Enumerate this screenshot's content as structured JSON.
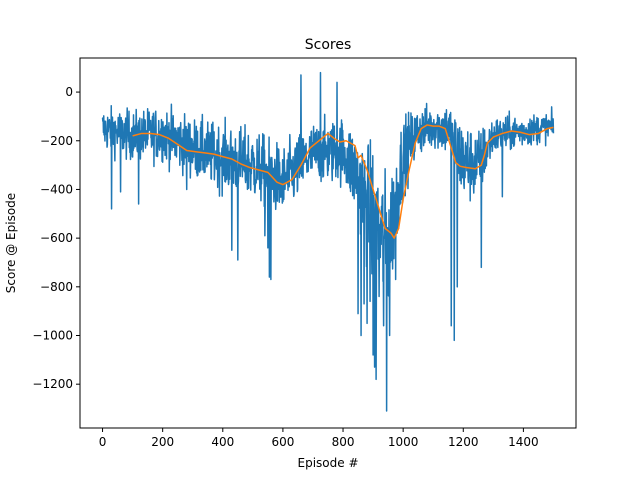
{
  "chart_data": {
    "type": "line",
    "title": "Scores",
    "xlabel": "Episode #",
    "ylabel": "Score @ Episode",
    "xlim": [
      -75,
      1575
    ],
    "ylim": [
      -1380,
      140
    ],
    "xticks": [
      0,
      200,
      400,
      600,
      800,
      1000,
      1200,
      1400
    ],
    "yticks": [
      0,
      -200,
      -400,
      -600,
      -800,
      -1000,
      -1200
    ],
    "grid": false,
    "legend": "none",
    "series": [
      {
        "color": "#1f77b4",
        "kind": "raw scores (noisy, ~1500 episodes)",
        "anchors": [
          [
            0,
            -150,
            80
          ],
          [
            100,
            -180,
            90
          ],
          [
            200,
            -170,
            100
          ],
          [
            300,
            -230,
            110
          ],
          [
            400,
            -270,
            120
          ],
          [
            500,
            -300,
            130
          ],
          [
            600,
            -370,
            130
          ],
          [
            700,
            -250,
            110
          ],
          [
            800,
            -240,
            120
          ],
          [
            850,
            -350,
            170
          ],
          [
            900,
            -520,
            250
          ],
          [
            950,
            -640,
            250
          ],
          [
            1000,
            -260,
            140
          ],
          [
            1050,
            -160,
            90
          ],
          [
            1100,
            -140,
            80
          ],
          [
            1150,
            -150,
            100
          ],
          [
            1200,
            -290,
            150
          ],
          [
            1250,
            -300,
            130
          ],
          [
            1300,
            -180,
            70
          ],
          [
            1400,
            -160,
            60
          ],
          [
            1500,
            -140,
            50
          ]
        ],
        "extremes": [
          [
            30,
            -480
          ],
          [
            60,
            -410
          ],
          [
            105,
            -210
          ],
          [
            120,
            -460
          ],
          [
            280,
            -400
          ],
          [
            430,
            -650
          ],
          [
            450,
            -690
          ],
          [
            540,
            -590
          ],
          [
            550,
            -640
          ],
          [
            555,
            -760
          ],
          [
            560,
            -770
          ],
          [
            600,
            -450
          ],
          [
            615,
            -380
          ],
          [
            660,
            70
          ],
          [
            725,
            80
          ],
          [
            780,
            40
          ],
          [
            850,
            -910
          ],
          [
            860,
            -1000
          ],
          [
            870,
            -870
          ],
          [
            880,
            -950
          ],
          [
            890,
            -860
          ],
          [
            900,
            -1080
          ],
          [
            905,
            -1130
          ],
          [
            910,
            -1180
          ],
          [
            920,
            -840
          ],
          [
            935,
            -960
          ],
          [
            945,
            -1310
          ],
          [
            955,
            -1000
          ],
          [
            975,
            -770
          ],
          [
            1010,
            -380
          ],
          [
            1160,
            -960
          ],
          [
            1170,
            -1020
          ],
          [
            1180,
            -800
          ],
          [
            1260,
            -720
          ],
          [
            1330,
            -430
          ]
        ]
      },
      {
        "color": "#ff7f0e",
        "kind": "rolling average",
        "x": [
          100,
          130,
          160,
          190,
          220,
          250,
          280,
          310,
          340,
          370,
          400,
          430,
          460,
          490,
          520,
          550,
          580,
          600,
          630,
          660,
          690,
          720,
          750,
          770,
          790,
          810,
          840,
          850,
          860,
          880,
          900,
          920,
          940,
          960,
          970,
          985,
          1000,
          1020,
          1040,
          1060,
          1080,
          1100,
          1120,
          1140,
          1160,
          1175,
          1190,
          1210,
          1240,
          1260,
          1270,
          1280,
          1300,
          1330,
          1360,
          1390,
          1420,
          1450,
          1480,
          1500
        ],
        "values": [
          -180,
          -170,
          -170,
          -175,
          -190,
          -215,
          -240,
          -245,
          -250,
          -255,
          -265,
          -275,
          -295,
          -310,
          -320,
          -330,
          -370,
          -380,
          -360,
          -300,
          -230,
          -200,
          -170,
          -190,
          -205,
          -200,
          -220,
          -270,
          -260,
          -320,
          -400,
          -480,
          -560,
          -580,
          -600,
          -560,
          -440,
          -320,
          -210,
          -150,
          -135,
          -140,
          -140,
          -150,
          -230,
          -290,
          -305,
          -310,
          -315,
          -300,
          -260,
          -210,
          -185,
          -170,
          -160,
          -165,
          -175,
          -170,
          -150,
          -145
        ]
      }
    ]
  }
}
